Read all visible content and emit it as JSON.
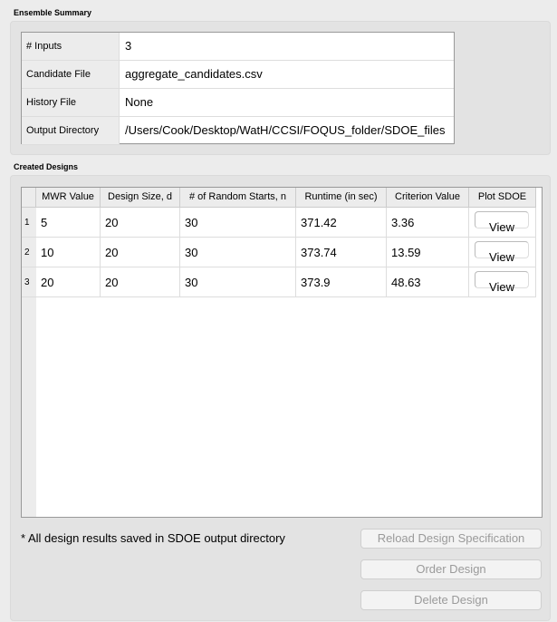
{
  "ensemble": {
    "title": "Ensemble Summary",
    "rows": [
      {
        "label": "# Inputs",
        "value": "3"
      },
      {
        "label": "Candidate File",
        "value": "aggregate_candidates.csv"
      },
      {
        "label": "History File",
        "value": "None"
      },
      {
        "label": "Output Directory",
        "value": "/Users/Cook/Desktop/WatH/CCSI/FOQUS_folder/SDOE_files"
      }
    ]
  },
  "designs": {
    "title": "Created Designs",
    "columns": [
      "MWR Value",
      "Design Size, d",
      "# of Random Starts, n",
      "Runtime (in sec)",
      "Criterion Value",
      "Plot SDOE"
    ],
    "rows": [
      {
        "n": "1",
        "mwr": "5",
        "size": "20",
        "starts": "30",
        "runtime": "371.42",
        "criterion": "3.36",
        "plot": "View"
      },
      {
        "n": "2",
        "mwr": "10",
        "size": "20",
        "starts": "30",
        "runtime": "373.74",
        "criterion": "13.59",
        "plot": "View"
      },
      {
        "n": "3",
        "mwr": "20",
        "size": "20",
        "starts": "30",
        "runtime": "373.9",
        "criterion": "48.63",
        "plot": "View"
      }
    ]
  },
  "note": "* All design results saved in SDOE output directory",
  "buttons": {
    "reload": "Reload Design Specification",
    "order": "Order Design",
    "delete": "Delete Design"
  }
}
